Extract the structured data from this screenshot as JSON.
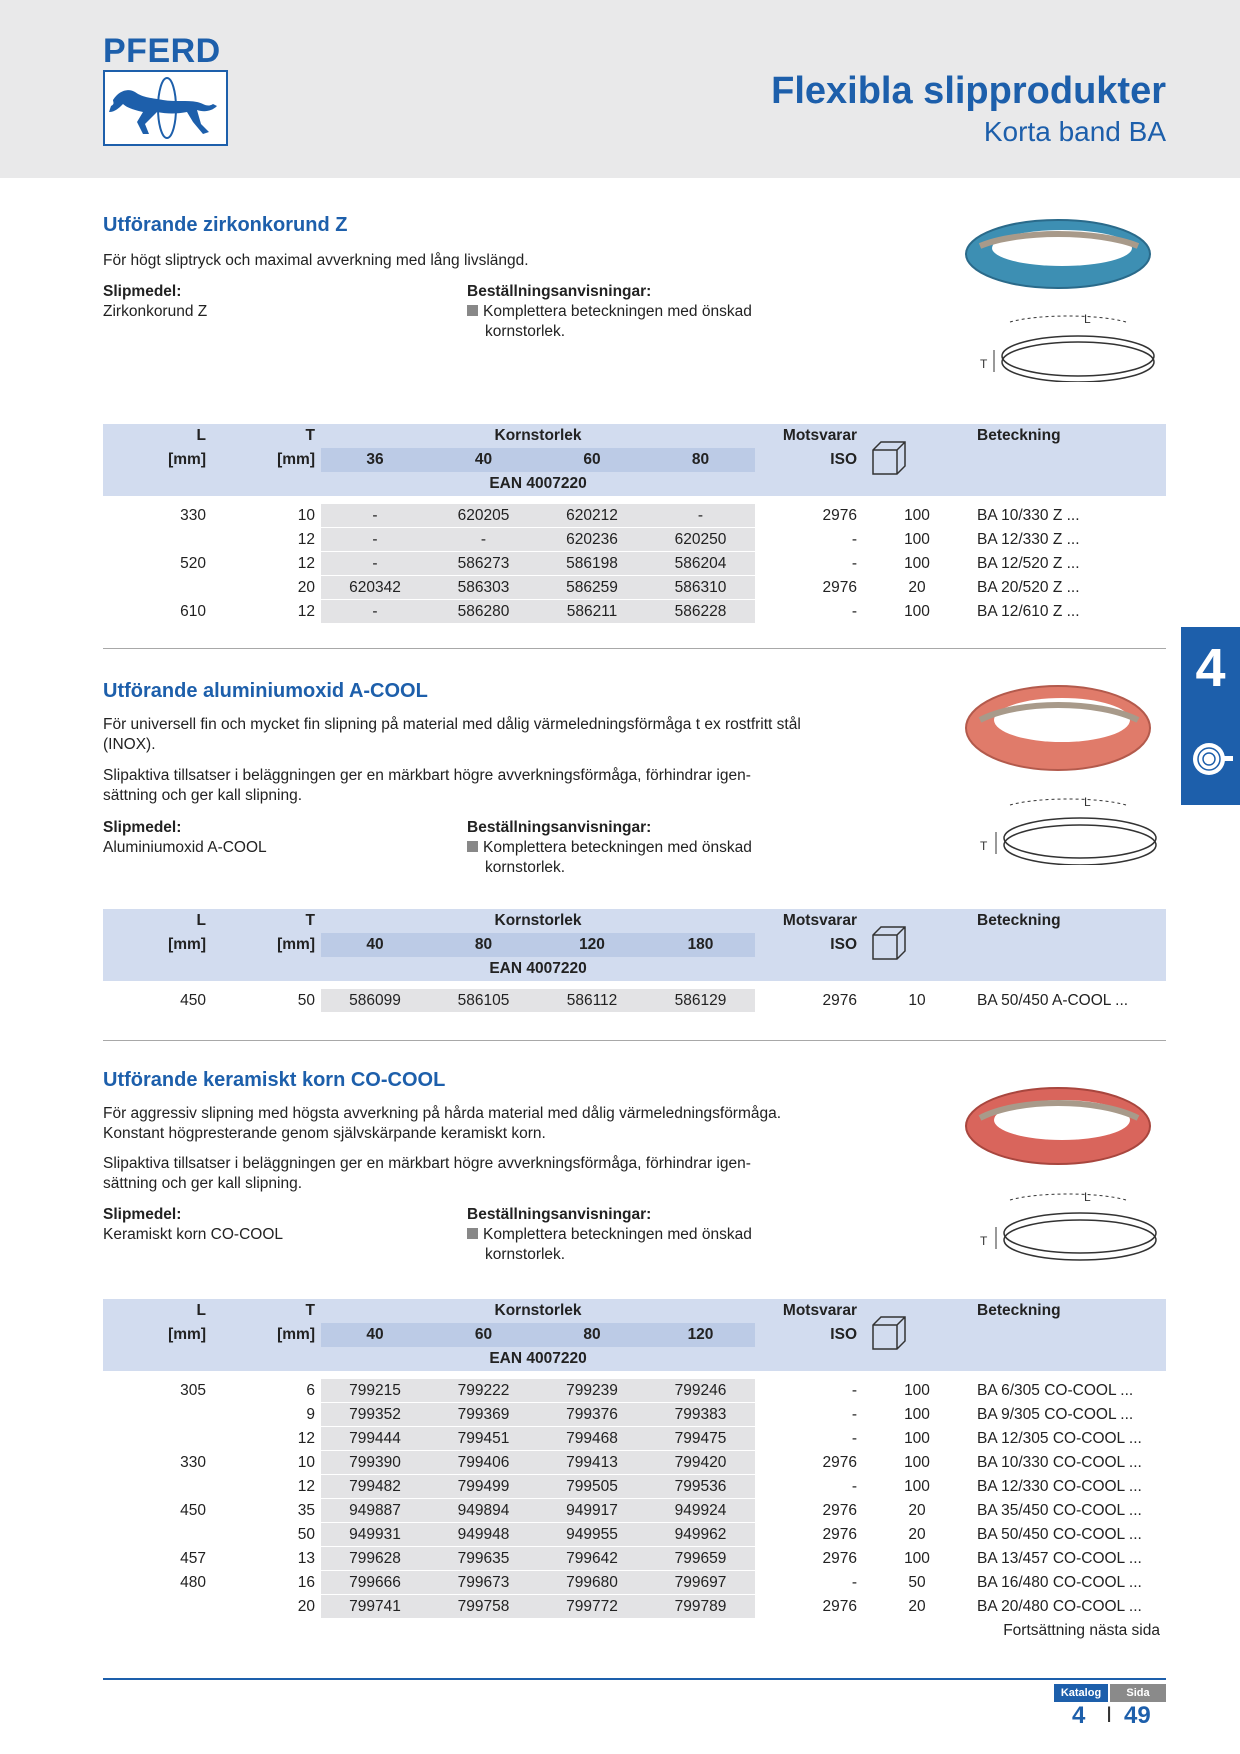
{
  "header": {
    "logo": "PFERD",
    "title": "Flexibla slipprodukter",
    "subtitle": "Korta band BA"
  },
  "common": {
    "slipmedel_label": "Slipmedel:",
    "order_label": "Beställningsanvisningar:",
    "order_line1": "Komplettera beteckningen med önskad",
    "order_line2": "kornstorlek.",
    "col_L": "L",
    "col_L_unit": "[mm]",
    "col_T": "T",
    "col_T_unit": "[mm]",
    "col_korn": "Kornstorlek",
    "col_ean": "EAN 4007220",
    "col_mots": "Motsvarar",
    "col_iso": "ISO",
    "col_bet": "Beteckning",
    "dim_L": "L",
    "dim_T": "T"
  },
  "sections": [
    {
      "title": "Utförande zirkonkorund Z",
      "paragraphs": [
        "För högt sliptryck och maximal avverkning med lång livslängd."
      ],
      "slipmedel": "Zirkonkorund Z",
      "grits": [
        "36",
        "40",
        "60",
        "80"
      ],
      "rows": [
        {
          "L": "330",
          "T": "10",
          "g": [
            "-",
            "620205",
            "620212",
            "-"
          ],
          "iso": "2976",
          "qty": "100",
          "bet": "BA 10/330 Z ..."
        },
        {
          "L": "",
          "T": "12",
          "g": [
            "-",
            "-",
            "620236",
            "620250"
          ],
          "iso": "-",
          "qty": "100",
          "bet": "BA 12/330 Z ..."
        },
        {
          "L": "520",
          "T": "12",
          "g": [
            "-",
            "586273",
            "586198",
            "586204"
          ],
          "iso": "-",
          "qty": "100",
          "bet": "BA 12/520 Z ..."
        },
        {
          "L": "",
          "T": "20",
          "g": [
            "620342",
            "586303",
            "586259",
            "586310"
          ],
          "iso": "2976",
          "qty": "20",
          "bet": "BA 20/520 Z ..."
        },
        {
          "L": "610",
          "T": "12",
          "g": [
            "-",
            "586280",
            "586211",
            "586228"
          ],
          "iso": "-",
          "qty": "100",
          "bet": "BA 12/610 Z ..."
        }
      ],
      "band_color": "#3d8fb3"
    },
    {
      "title": "Utförande aluminiumoxid A-COOL",
      "paragraphs": [
        "För universell fin och mycket fin slipning på material med dålig värmeledningsförmåga t ex rostfritt stål (INOX).",
        "Slipaktiva tillsatser i beläggningen ger en märkbart högre avverkningsförmåga, förhindrar igen-sättning och ger kall slipning."
      ],
      "slipmedel": "Aluminiumoxid A-COOL",
      "grits": [
        "40",
        "80",
        "120",
        "180"
      ],
      "rows": [
        {
          "L": "450",
          "T": "50",
          "g": [
            "586099",
            "586105",
            "586112",
            "586129"
          ],
          "iso": "2976",
          "qty": "10",
          "bet": "BA 50/450 A-COOL ..."
        }
      ],
      "band_color": "#e07b6a"
    },
    {
      "title": "Utförande keramiskt korn CO-COOL",
      "paragraphs": [
        "För aggressiv slipning med högsta avverkning på hårda material med dålig värmeledningsförmåga. Konstant högpresterande genom självskärpande keramiskt korn.",
        "Slipaktiva tillsatser i beläggningen ger en märkbart högre avverkningsförmåga, förhindrar igen-sättning och ger kall slipning."
      ],
      "slipmedel": "Keramiskt korn CO-COOL",
      "grits": [
        "40",
        "60",
        "80",
        "120"
      ],
      "rows": [
        {
          "L": "305",
          "T": "6",
          "g": [
            "799215",
            "799222",
            "799239",
            "799246"
          ],
          "iso": "-",
          "qty": "100",
          "bet": "BA 6/305 CO-COOL ..."
        },
        {
          "L": "",
          "T": "9",
          "g": [
            "799352",
            "799369",
            "799376",
            "799383"
          ],
          "iso": "-",
          "qty": "100",
          "bet": "BA 9/305 CO-COOL ..."
        },
        {
          "L": "",
          "T": "12",
          "g": [
            "799444",
            "799451",
            "799468",
            "799475"
          ],
          "iso": "-",
          "qty": "100",
          "bet": "BA 12/305 CO-COOL ..."
        },
        {
          "L": "330",
          "T": "10",
          "g": [
            "799390",
            "799406",
            "799413",
            "799420"
          ],
          "iso": "2976",
          "qty": "100",
          "bet": "BA 10/330 CO-COOL ..."
        },
        {
          "L": "",
          "T": "12",
          "g": [
            "799482",
            "799499",
            "799505",
            "799536"
          ],
          "iso": "-",
          "qty": "100",
          "bet": "BA 12/330 CO-COOL ..."
        },
        {
          "L": "450",
          "T": "35",
          "g": [
            "949887",
            "949894",
            "949917",
            "949924"
          ],
          "iso": "2976",
          "qty": "20",
          "bet": "BA 35/450 CO-COOL ..."
        },
        {
          "L": "",
          "T": "50",
          "g": [
            "949931",
            "949948",
            "949955",
            "949962"
          ],
          "iso": "2976",
          "qty": "20",
          "bet": "BA 50/450 CO-COOL ..."
        },
        {
          "L": "457",
          "T": "13",
          "g": [
            "799628",
            "799635",
            "799642",
            "799659"
          ],
          "iso": "2976",
          "qty": "100",
          "bet": "BA 13/457 CO-COOL ..."
        },
        {
          "L": "480",
          "T": "16",
          "g": [
            "799666",
            "799673",
            "799680",
            "799697"
          ],
          "iso": "-",
          "qty": "50",
          "bet": "BA 16/480 CO-COOL ..."
        },
        {
          "L": "",
          "T": "20",
          "g": [
            "799741",
            "799758",
            "799772",
            "799789"
          ],
          "iso": "2976",
          "qty": "20",
          "bet": "BA 20/480 CO-COOL ..."
        }
      ],
      "band_color": "#d9655c"
    }
  ],
  "continuation": "Fortsättning nästa sida",
  "side_tab": "4",
  "footer": {
    "katalog_label": "Katalog",
    "sida_label": "Sida",
    "katalog": "4",
    "separator": "I",
    "sida": "49"
  },
  "colors": {
    "brand": "#1d5fab"
  }
}
